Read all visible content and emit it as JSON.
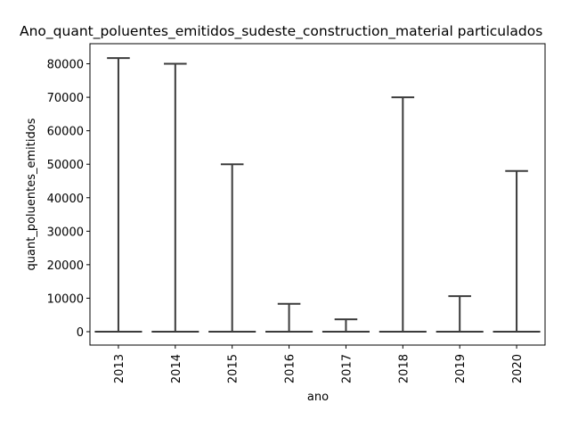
{
  "chart_data": {
    "type": "box",
    "title": "Ano_quant_poluentes_emitidos_sudeste_construction_material particulados",
    "xlabel": "ano",
    "ylabel": "quant_poluentes_emitidos",
    "ylim": [
      -4000,
      86000
    ],
    "yticks": [
      0,
      10000,
      20000,
      30000,
      40000,
      50000,
      60000,
      70000,
      80000
    ],
    "ytick_labels": [
      "0",
      "10000",
      "20000",
      "30000",
      "40000",
      "50000",
      "60000",
      "70000",
      "80000"
    ],
    "categories": [
      "2013",
      "2014",
      "2015",
      "2016",
      "2017",
      "2018",
      "2019",
      "2020"
    ],
    "series": [
      {
        "min": [
          0,
          0,
          0,
          0,
          0,
          0,
          0,
          0
        ],
        "q1": [
          0,
          0,
          0,
          0,
          0,
          0,
          0,
          0
        ],
        "median": [
          0,
          0,
          0,
          0,
          0,
          0,
          0,
          0
        ],
        "q3": [
          0,
          0,
          0,
          0,
          0,
          0,
          0,
          0
        ],
        "max": [
          81700,
          80000,
          50000,
          8300,
          3700,
          70000,
          10600,
          48000
        ]
      }
    ],
    "grid": false,
    "box_color": "#3b3b3b"
  }
}
